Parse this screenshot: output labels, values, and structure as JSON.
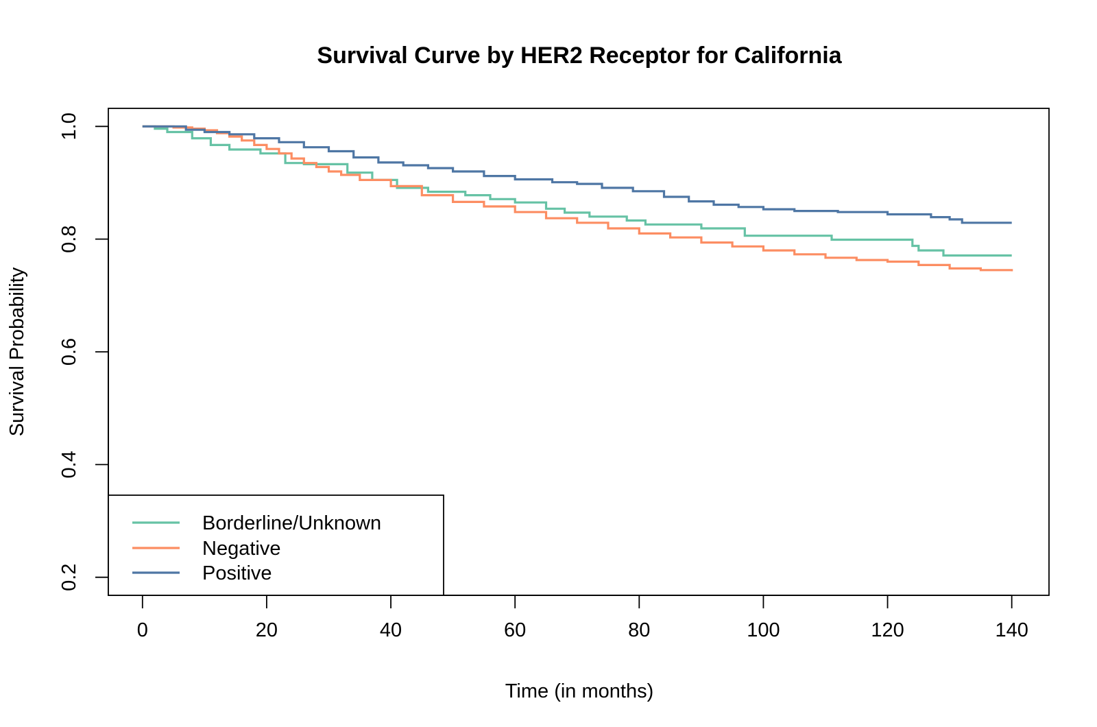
{
  "chart_data": {
    "type": "line",
    "title": "Survival Curve by HER2 Receptor for California",
    "xlabel": "Time (in months)",
    "ylabel": "Survival Probability",
    "xlim": [
      -5.5,
      146
    ],
    "ylim": [
      0.168,
      1.032
    ],
    "x_ticks": [
      0,
      20,
      40,
      60,
      80,
      100,
      120,
      140
    ],
    "y_ticks": [
      0.2,
      0.4,
      0.6,
      0.8,
      1.0
    ],
    "x_tick_labels": [
      "0",
      "20",
      "40",
      "60",
      "80",
      "100",
      "120",
      "140"
    ],
    "y_tick_labels": [
      "0.2",
      "0.4",
      "0.6",
      "0.8",
      "1.0"
    ],
    "grid": false,
    "legend_position": "bottom-left",
    "step": true,
    "series": [
      {
        "name": "Borderline/Unknown",
        "color": "#66c2a5",
        "x": [
          0,
          2,
          4,
          8,
          11,
          14,
          19,
          23,
          26,
          33,
          37,
          41,
          46,
          52,
          56,
          60,
          65,
          68,
          72,
          78,
          81,
          90,
          97,
          111,
          124,
          125,
          129,
          140
        ],
        "y": [
          1.0,
          0.996,
          0.99,
          0.979,
          0.967,
          0.959,
          0.952,
          0.935,
          0.933,
          0.918,
          0.905,
          0.891,
          0.884,
          0.878,
          0.871,
          0.865,
          0.854,
          0.847,
          0.84,
          0.833,
          0.826,
          0.819,
          0.806,
          0.799,
          0.788,
          0.78,
          0.771,
          0.771
        ]
      },
      {
        "name": "Negative",
        "color": "#fc8d62",
        "x": [
          0,
          5,
          8,
          10,
          12,
          14,
          16,
          18,
          20,
          22,
          24,
          26,
          28,
          30,
          32,
          35,
          40,
          45,
          50,
          55,
          60,
          65,
          70,
          75,
          80,
          85,
          90,
          95,
          100,
          105,
          110,
          115,
          120,
          125,
          130,
          135,
          140
        ],
        "y": [
          1.0,
          0.998,
          0.996,
          0.993,
          0.988,
          0.982,
          0.975,
          0.967,
          0.96,
          0.952,
          0.943,
          0.935,
          0.928,
          0.92,
          0.914,
          0.905,
          0.894,
          0.878,
          0.866,
          0.858,
          0.848,
          0.837,
          0.829,
          0.819,
          0.81,
          0.803,
          0.794,
          0.787,
          0.78,
          0.773,
          0.767,
          0.763,
          0.76,
          0.754,
          0.748,
          0.745,
          0.743
        ]
      },
      {
        "name": "Positive",
        "color": "#4e76a4",
        "x": [
          0,
          7,
          10,
          14,
          18,
          22,
          26,
          30,
          34,
          38,
          42,
          46,
          50,
          55,
          60,
          66,
          70,
          74,
          79,
          84,
          88,
          92,
          96,
          100,
          105,
          112,
          120,
          127,
          130,
          132,
          140
        ],
        "y": [
          1.0,
          0.994,
          0.99,
          0.986,
          0.979,
          0.972,
          0.963,
          0.956,
          0.945,
          0.936,
          0.931,
          0.926,
          0.92,
          0.912,
          0.906,
          0.901,
          0.898,
          0.891,
          0.885,
          0.875,
          0.867,
          0.861,
          0.857,
          0.853,
          0.85,
          0.848,
          0.844,
          0.839,
          0.835,
          0.829,
          0.829
        ]
      }
    ]
  }
}
